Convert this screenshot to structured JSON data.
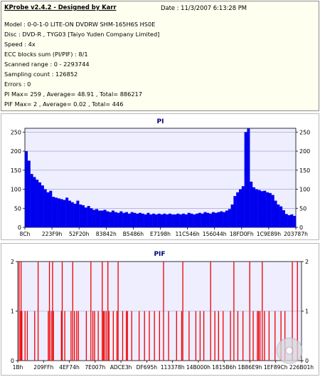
{
  "header": {
    "title": "KProbe v2.4.2 - Designed by Karr",
    "date": "Date : 11/3/2007 6:13:28 PM",
    "lines": [
      "Model : 0-0-1-0 LITE-ON DVDRW SHM-165H6S HS0E",
      "Disc : DVD-R , TYG03 [Taiyo Yuden Company Limited]",
      "Speed : 4x",
      "ECC blocks sum (PI/PIF) : 8/1",
      "Scanned range : 0 - 2293744",
      "Sampling count : 126852",
      "Errors : 0",
      "PI Max= 259 , Average= 48.91 , Total= 886217",
      "PIF Max= 2 , Average= 0.02 , Total= 446"
    ]
  },
  "colors": {
    "pi_bar": "#0000ee",
    "pif_bar": "#ee0000",
    "plot_bg": "#eeeeff",
    "panel_title": "#000080"
  },
  "chart_data": [
    {
      "type": "area",
      "title": "PI",
      "ylim": [
        0,
        260
      ],
      "yticks_left": [
        "0",
        "50",
        "100",
        "150",
        "200",
        "250"
      ],
      "yticks_right": [
        "0",
        "50",
        "100",
        "150",
        "200",
        "250"
      ],
      "xtick_labels": [
        "8Ch",
        "223F9h",
        "52F20h",
        "83842h",
        "B5486h",
        "E7198h",
        "11C546h",
        "156044h",
        "18FD0Fh",
        "1C9E89h",
        "203787h"
      ],
      "series": [
        {
          "values": [
            200,
            175,
            140,
            132,
            125,
            118,
            110,
            100,
            92,
            96,
            80,
            78,
            76,
            74,
            72,
            78,
            70,
            66,
            62,
            70,
            60,
            58,
            52,
            56,
            50,
            46,
            48,
            44,
            44,
            46,
            42,
            40,
            44,
            40,
            38,
            42,
            38,
            40,
            36,
            40,
            38,
            36,
            38,
            36,
            34,
            38,
            34,
            36,
            34,
            36,
            34,
            36,
            34,
            36,
            34,
            34,
            36,
            34,
            36,
            34,
            38,
            36,
            34,
            36,
            38,
            36,
            40,
            38,
            36,
            40,
            38,
            40,
            42,
            40,
            44,
            48,
            60,
            82,
            92,
            100,
            108,
            250,
            259,
            120,
            105,
            100,
            98,
            95,
            96,
            92,
            90,
            85,
            70,
            60,
            55,
            45,
            35,
            32,
            34,
            30
          ]
        }
      ]
    },
    {
      "type": "bar",
      "title": "PIF",
      "ylim": [
        0,
        2
      ],
      "yticks_left": [
        "0",
        "1",
        "2"
      ],
      "yticks_right": [
        "0",
        "1",
        "2"
      ],
      "xtick_labels": [
        "1Bh",
        "209FFh",
        "4EF74h",
        "7E007h",
        "ADCE3h",
        "DF695h",
        "113378h",
        "14B000h",
        "1815B6h",
        "1B86E9h",
        "1EF89Ch",
        "226B01h"
      ],
      "series": [
        {
          "x": [
            0.3,
            0.8,
            1.0,
            1.3,
            2.4,
            3.2,
            5.8,
            7.0,
            10.6,
            11.0,
            11.6,
            12.1,
            12.4,
            15.2,
            15.5,
            16.4,
            18.6,
            19.2,
            19.8,
            20.6,
            21.2,
            24.0,
            25.6,
            26.3,
            26.9,
            28.2,
            29.6,
            30.0,
            30.4,
            31.0,
            31.6,
            32.0,
            33.5,
            34.8,
            35.2,
            36.8,
            38.1,
            38.5,
            40.0,
            42.6,
            44.5,
            46.2,
            48.0,
            49.8,
            51.2,
            53.0,
            55.8,
            57.6,
            58.0,
            60.2,
            62.6,
            64.1,
            65.4,
            67.8,
            69.3,
            70.6,
            72.2,
            74.8,
            76.0,
            77.4,
            79.2,
            81.6,
            82.8,
            84.3,
            84.7,
            85.2,
            86.0,
            86.8,
            88.4,
            90.5,
            92.6,
            94.0,
            96.6,
            98.4
          ],
          "values": [
            2,
            1,
            2,
            1,
            1,
            1,
            1,
            2,
            1,
            2,
            1,
            2,
            1,
            1,
            2,
            1,
            1,
            2,
            1,
            1,
            1,
            1,
            2,
            1,
            1,
            1,
            2,
            1,
            1,
            1,
            2,
            1,
            1,
            1,
            2,
            1,
            1,
            1,
            1,
            1,
            1,
            1,
            1,
            1,
            2,
            1,
            1,
            1,
            2,
            1,
            1,
            1,
            1,
            2,
            1,
            1,
            1,
            1,
            2,
            1,
            1,
            2,
            1,
            1,
            1,
            1,
            2,
            1,
            1,
            1,
            1,
            1,
            2,
            2
          ]
        }
      ]
    }
  ]
}
